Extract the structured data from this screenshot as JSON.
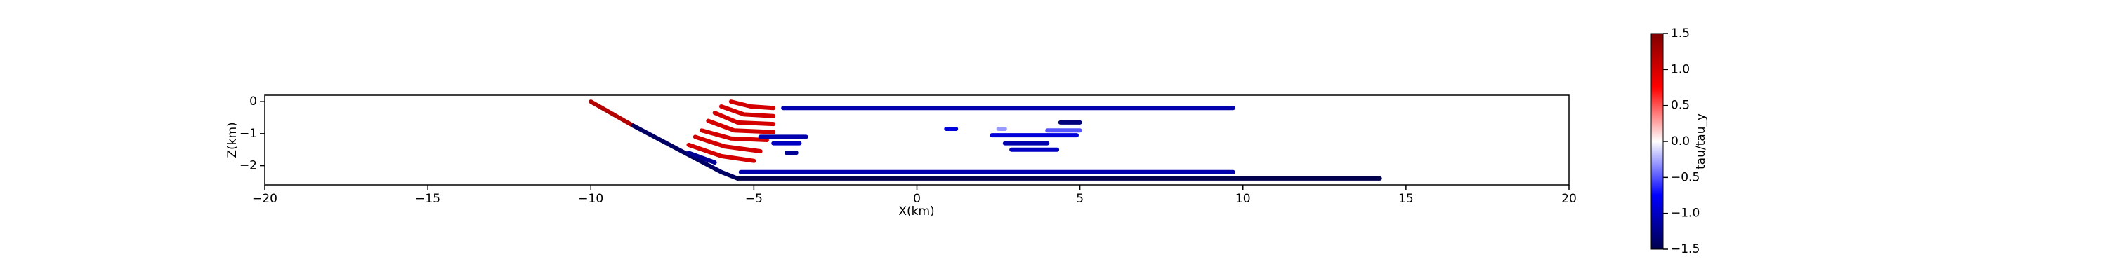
{
  "chart_data": {
    "type": "segments",
    "xlabel": "X(km)",
    "ylabel": "Z(km)",
    "colorbar_label": "tau/tau_y",
    "cmap": "seismic",
    "clim": [
      -1.5,
      1.5
    ],
    "cticks": [
      {
        "value": -1.5,
        "label": "−1.5"
      },
      {
        "value": -1.0,
        "label": "−1.0"
      },
      {
        "value": -0.5,
        "label": "−0.5"
      },
      {
        "value": 0.0,
        "label": "0.0"
      },
      0.5,
      {
        "value": 1.0,
        "label": "1.0"
      },
      1.5
    ],
    "xlim": [
      -20,
      20
    ],
    "ylim": [
      -2.6,
      0.2
    ],
    "xticks": [
      {
        "value": -20,
        "label": "−20"
      },
      {
        "value": -15,
        "label": "−15"
      },
      {
        "value": -10,
        "label": "−10"
      },
      {
        "value": -5,
        "label": "−5"
      },
      0,
      5,
      10,
      15,
      20
    ],
    "yticks": [
      0,
      {
        "value": -1,
        "label": "−1"
      },
      {
        "value": -2,
        "label": "−2"
      }
    ],
    "segments": [
      {
        "x": [
          -10,
          -8.7
        ],
        "z": [
          0,
          -0.75
        ],
        "value": 1.2
      },
      {
        "x": [
          -8.7,
          -6.0,
          -5.5
        ],
        "z": [
          -0.75,
          -2.2,
          -2.4
        ],
        "value": -1.4
      },
      {
        "x": [
          -5.5,
          14.2
        ],
        "z": [
          -2.4,
          -2.4
        ],
        "value": -1.5
      },
      {
        "x": [
          -4.1,
          9.7
        ],
        "z": [
          -0.2,
          -0.2
        ],
        "value": -1.1
      },
      {
        "x": [
          -5.4,
          9.7
        ],
        "z": [
          -2.2,
          -2.2
        ],
        "value": -1.1
      },
      {
        "x": [
          -5.7,
          -5.1,
          -4.4
        ],
        "z": [
          0,
          -0.15,
          -0.2
        ],
        "value": 1.0
      },
      {
        "x": [
          -6.0,
          -5.3,
          -4.4
        ],
        "z": [
          -0.15,
          -0.4,
          -0.45
        ],
        "value": 1.0
      },
      {
        "x": [
          -6.2,
          -5.5,
          -4.4
        ],
        "z": [
          -0.35,
          -0.65,
          -0.7
        ],
        "value": 1.0
      },
      {
        "x": [
          -6.4,
          -5.6,
          -4.4
        ],
        "z": [
          -0.6,
          -0.9,
          -0.95
        ],
        "value": 1.0
      },
      {
        "x": [
          -6.6,
          -5.7,
          -4.6
        ],
        "z": [
          -0.9,
          -1.15,
          -1.2
        ],
        "value": 1.0
      },
      {
        "x": [
          -6.8,
          -5.9,
          -4.8
        ],
        "z": [
          -1.1,
          -1.4,
          -1.55
        ],
        "value": 1.0
      },
      {
        "x": [
          -7.0,
          -6.0,
          -5.0
        ],
        "z": [
          -1.35,
          -1.7,
          -1.85
        ],
        "value": 1.0
      },
      {
        "x": [
          -7.0,
          -6.2
        ],
        "z": [
          -1.6,
          -1.9
        ],
        "value": -1.2
      },
      {
        "x": [
          -4.8,
          -3.4
        ],
        "z": [
          -1.1,
          -1.1
        ],
        "value": -1.1
      },
      {
        "x": [
          -4.4,
          -3.6
        ],
        "z": [
          -1.3,
          -1.3
        ],
        "value": -1.0
      },
      {
        "x": [
          -4.0,
          -3.7
        ],
        "z": [
          -1.6,
          -1.6
        ],
        "value": -1.2
      },
      {
        "x": [
          0.9,
          1.2
        ],
        "z": [
          -0.85,
          -0.85
        ],
        "value": -0.9
      },
      {
        "x": [
          4.4,
          5.0
        ],
        "z": [
          -0.65,
          -0.65
        ],
        "value": -1.3
      },
      {
        "x": [
          4.0,
          5.0
        ],
        "z": [
          -0.9,
          -0.9
        ],
        "value": -0.5
      },
      {
        "x": [
          2.3,
          4.9
        ],
        "z": [
          -1.05,
          -1.05
        ],
        "value": -0.9
      },
      {
        "x": [
          2.7,
          4.0
        ],
        "z": [
          -1.3,
          -1.3
        ],
        "value": -1.1
      },
      {
        "x": [
          2.9,
          4.3
        ],
        "z": [
          -1.5,
          -1.5
        ],
        "value": -1.0
      },
      {
        "x": [
          2.5,
          2.7
        ],
        "z": [
          -0.85,
          -0.85
        ],
        "value": -0.3
      }
    ]
  }
}
